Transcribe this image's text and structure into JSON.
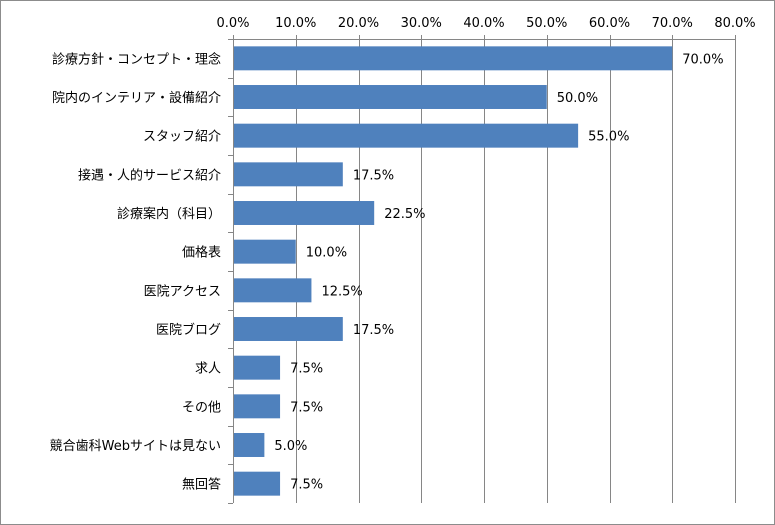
{
  "chart_data": {
    "type": "bar",
    "orientation": "horizontal",
    "title": "",
    "xlabel": "",
    "ylabel": "",
    "xlim": [
      0,
      80
    ],
    "tick_values": [
      0,
      10,
      20,
      30,
      40,
      50,
      60,
      70,
      80
    ],
    "tick_labels": [
      "0.0%",
      "10.0%",
      "20.0%",
      "30.0%",
      "40.0%",
      "50.0%",
      "60.0%",
      "70.0%",
      "80.0%"
    ],
    "grid": true,
    "legend": "none",
    "bar_color": "#4f81bd",
    "categories": [
      "診療方針・コンセプト・理念",
      "院内のインテリア・設備紹介",
      "スタッフ紹介",
      "接遇・人的サービス紹介",
      "診療案内（科目）",
      "価格表",
      "医院アクセス",
      "医院ブログ",
      "求人",
      "その他",
      "競合歯科Webサイトは見ない",
      "無回答"
    ],
    "values": [
      70.0,
      50.0,
      55.0,
      17.5,
      22.5,
      10.0,
      12.5,
      17.5,
      7.5,
      7.5,
      5.0,
      7.5
    ],
    "value_labels": [
      "70.0%",
      "50.0%",
      "55.0%",
      "17.5%",
      "22.5%",
      "10.0%",
      "12.5%",
      "17.5%",
      "7.5%",
      "7.5%",
      "5.0%",
      "7.5%"
    ]
  }
}
